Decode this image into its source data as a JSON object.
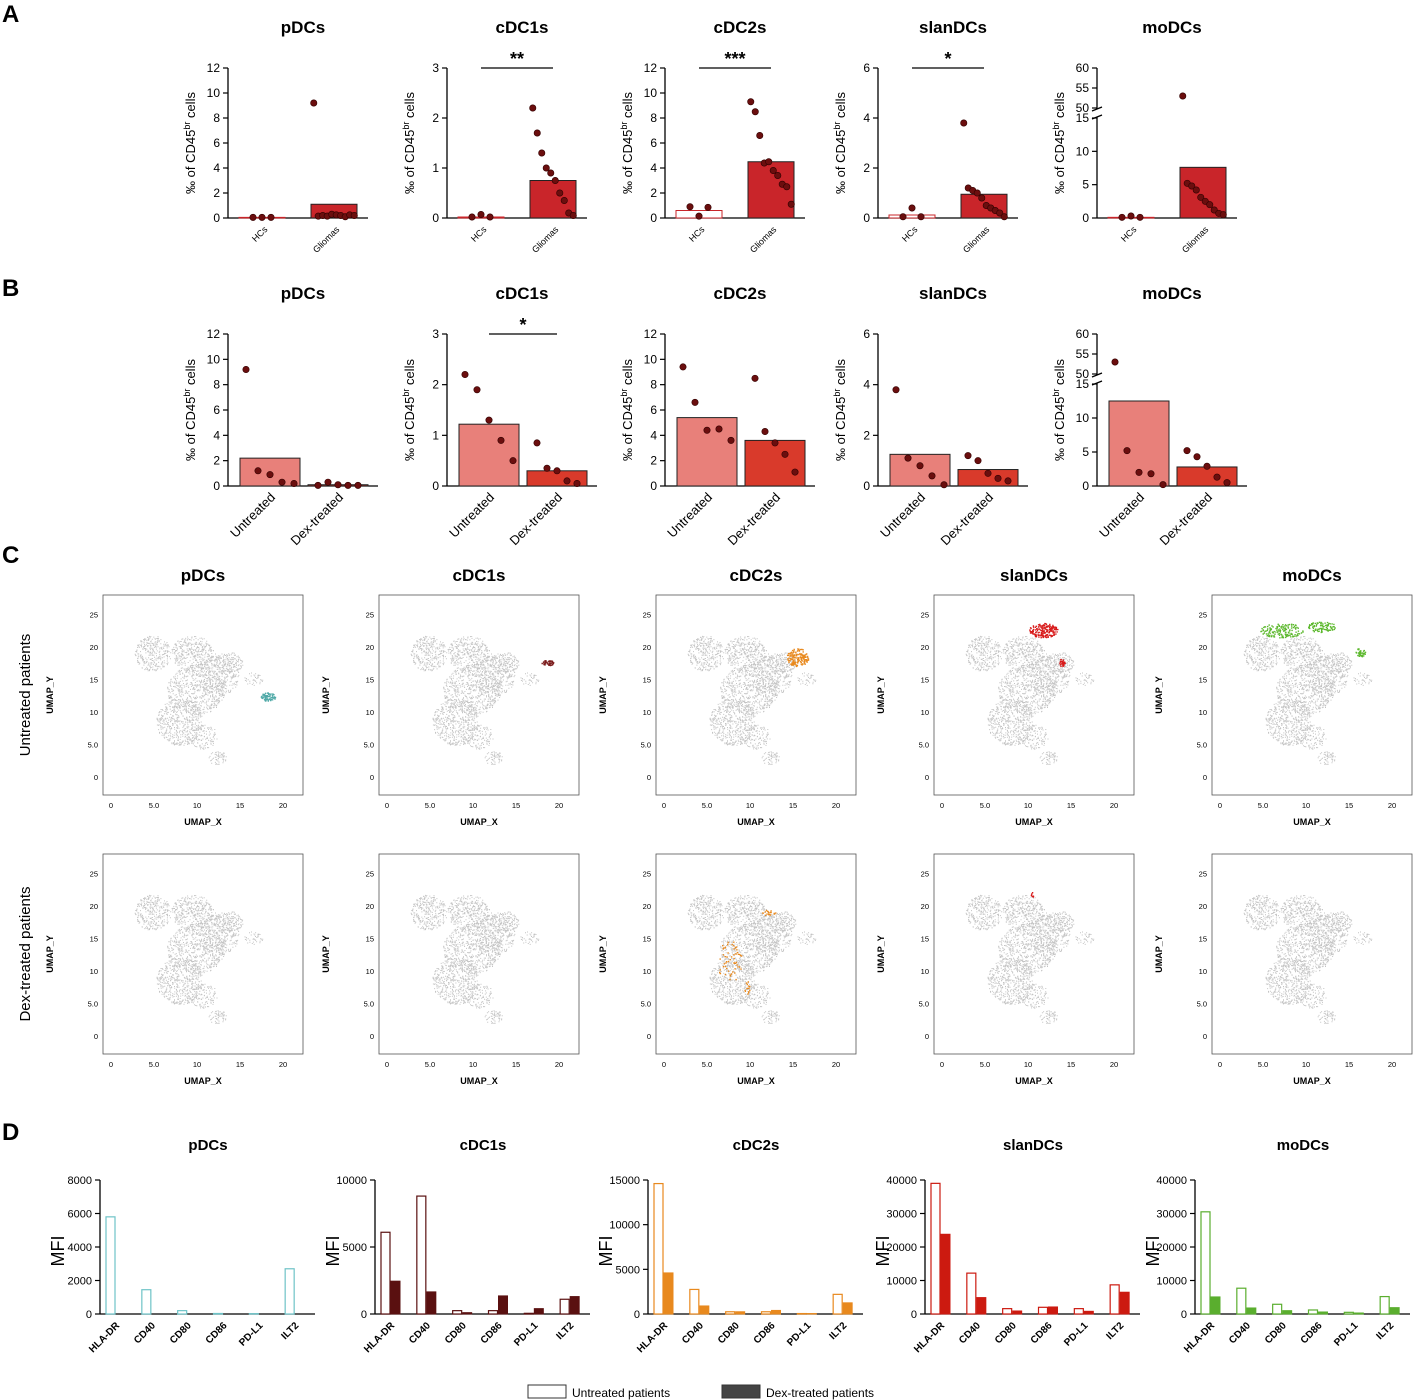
{
  "panels": {
    "A": {
      "letter": "A",
      "x_labels": [
        "HCs",
        "Gliomas"
      ],
      "y_label": "‰ of CD45",
      "y_label_sup": "br",
      "y_label_end": " cells",
      "charts": [
        {
          "title": "pDCs",
          "bars": [
            0.05,
            1.1
          ],
          "points_hc": [
            0.05,
            0.05,
            0.05
          ],
          "points_g": [
            9.2,
            0.15,
            0.2,
            0.15,
            0.3,
            0.25,
            0.2,
            0.1,
            0.25,
            0.2
          ],
          "ylim": [
            0,
            12
          ],
          "ticks": [
            0,
            2,
            4,
            6,
            8,
            10,
            12
          ],
          "sig": ""
        },
        {
          "title": "cDC1s",
          "bars": [
            0.02,
            0.75
          ],
          "points_hc": [
            0.02,
            0.07,
            0.02
          ],
          "points_g": [
            2.2,
            1.7,
            1.3,
            1.0,
            0.9,
            0.75,
            0.5,
            0.35,
            0.1,
            0.05
          ],
          "ylim": [
            0,
            3
          ],
          "ticks": [
            0,
            1,
            2,
            3
          ],
          "sig": "**"
        },
        {
          "title": "cDC2s",
          "bars": [
            0.6,
            4.5
          ],
          "points_hc": [
            0.9,
            0.15,
            0.85
          ],
          "points_g": [
            9.3,
            8.5,
            6.6,
            4.4,
            4.5,
            3.8,
            3.4,
            2.7,
            2.5,
            1.1
          ],
          "ylim": [
            0,
            12
          ],
          "ticks": [
            0,
            2,
            4,
            6,
            8,
            10,
            12
          ],
          "sig": "***"
        },
        {
          "title": "slanDCs",
          "bars": [
            0.12,
            0.95
          ],
          "points_hc": [
            0.05,
            0.4,
            0.05
          ],
          "points_g": [
            3.8,
            1.2,
            1.1,
            1.0,
            0.8,
            0.5,
            0.4,
            0.3,
            0.2,
            0.05
          ],
          "ylim": [
            0,
            6
          ],
          "ticks": [
            0,
            2,
            4,
            6
          ],
          "sig": "*"
        },
        {
          "title": "moDCs",
          "bars": [
            0.1,
            7.6
          ],
          "points_hc": [
            0.1,
            0.3,
            0.1
          ],
          "points_g": [
            53,
            5.2,
            4.8,
            4.2,
            3.1,
            2.5,
            2.0,
            1.2,
            0.7,
            0.5
          ],
          "ylim": [
            0,
            60
          ],
          "ticks": [
            0,
            5,
            10,
            15,
            50,
            55,
            60
          ],
          "broken": true,
          "sig": ""
        }
      ]
    },
    "B": {
      "letter": "B",
      "x_labels": [
        "Untreated",
        "Dex-treated"
      ],
      "charts": [
        {
          "title": "pDCs",
          "bars": [
            2.2,
            0.1
          ],
          "points_u": [
            9.2,
            1.2,
            0.9,
            0.3,
            0.2
          ],
          "points_d": [
            0.05,
            0.3,
            0.1,
            0.05,
            0.05
          ],
          "ylim": [
            0,
            12
          ],
          "ticks": [
            0,
            2,
            4,
            6,
            8,
            10,
            12
          ],
          "sig": ""
        },
        {
          "title": "cDC1s",
          "bars": [
            1.22,
            0.3
          ],
          "points_u": [
            2.2,
            1.9,
            1.3,
            0.9,
            0.5
          ],
          "points_d": [
            0.85,
            0.35,
            0.3,
            0.1,
            0.05
          ],
          "ylim": [
            0,
            3
          ],
          "ticks": [
            0,
            1,
            2,
            3
          ],
          "sig": "*"
        },
        {
          "title": "cDC2s",
          "bars": [
            5.4,
            3.6
          ],
          "points_u": [
            9.4,
            6.6,
            4.4,
            4.5,
            3.6
          ],
          "points_d": [
            8.5,
            4.3,
            3.4,
            2.5,
            1.1
          ],
          "ylim": [
            0,
            12
          ],
          "ticks": [
            0,
            2,
            4,
            6,
            8,
            10,
            12
          ],
          "sig": ""
        },
        {
          "title": "slanDCs",
          "bars": [
            1.25,
            0.65
          ],
          "points_u": [
            3.8,
            1.1,
            0.8,
            0.4,
            0.05
          ],
          "points_d": [
            1.2,
            1.0,
            0.5,
            0.3,
            0.2
          ],
          "ylim": [
            0,
            6
          ],
          "ticks": [
            0,
            2,
            4,
            6
          ],
          "sig": ""
        },
        {
          "title": "moDCs",
          "bars": [
            12.5,
            2.8
          ],
          "points_u": [
            53,
            5.2,
            2.0,
            1.8,
            0.2
          ],
          "points_d": [
            5.2,
            4.3,
            2.9,
            1.3,
            0.5
          ],
          "ylim": [
            0,
            60
          ],
          "ticks": [
            0,
            5,
            10,
            15,
            50,
            55,
            60
          ],
          "broken": true,
          "sig": ""
        }
      ]
    },
    "C": {
      "letter": "C",
      "row_labels": [
        "Untreated patients",
        "Dex-treated patients"
      ],
      "x_label": "UMAP_X",
      "y_label": "UMAP_Y",
      "x_ticks": [
        "0",
        "5.0",
        "10",
        "15",
        "20"
      ],
      "y_ticks": [
        "0",
        "5.0",
        "10",
        "15",
        "20",
        "25"
      ],
      "titles": [
        "pDCs",
        "cDC1s",
        "cDC2s",
        "slanDCs",
        "moDCs"
      ],
      "colors": [
        "#4fa9a7",
        "#7a1a1a",
        "#e8891e",
        "#d81a1a",
        "#5cb82d"
      ]
    },
    "D": {
      "letter": "D",
      "y_label": "MFI",
      "categories": [
        "HLA-DR",
        "CD40",
        "CD80",
        "CD86",
        "PD-L1",
        "ILT2"
      ],
      "charts": [
        {
          "title": "pDCs",
          "color": "#6ec3c7",
          "untreated": [
            5800,
            1450,
            200,
            30,
            20,
            2700
          ],
          "dex": [
            0,
            0,
            0,
            0,
            0,
            0
          ],
          "ylim": [
            0,
            8000
          ],
          "ticks": [
            0,
            2000,
            4000,
            6000,
            8000
          ]
        },
        {
          "title": "cDC1s",
          "color": "#5a1010",
          "untreated": [
            6100,
            8800,
            250,
            250,
            50,
            1100
          ],
          "dex": [
            2450,
            1650,
            100,
            1350,
            400,
            1300
          ],
          "ylim": [
            0,
            10000
          ],
          "ticks": [
            0,
            5000,
            10000
          ]
        },
        {
          "title": "cDC2s",
          "color": "#e8891e",
          "untreated": [
            14600,
            2750,
            250,
            250,
            50,
            2200
          ],
          "dex": [
            4600,
            900,
            250,
            400,
            50,
            1250
          ],
          "ylim": [
            0,
            15000
          ],
          "ticks": [
            0,
            5000,
            10000,
            15000
          ]
        },
        {
          "title": "slanDCs",
          "color": "#cc1a10",
          "untreated": [
            39000,
            12200,
            1600,
            2000,
            1600,
            8700
          ],
          "dex": [
            23800,
            4900,
            900,
            2100,
            800,
            6500
          ],
          "ylim": [
            0,
            40000
          ],
          "ticks": [
            0,
            10000,
            20000,
            30000,
            40000
          ]
        },
        {
          "title": "moDCs",
          "color": "#5aae2e",
          "untreated": [
            30500,
            7700,
            2900,
            1200,
            500,
            5200
          ],
          "dex": [
            5100,
            1800,
            1000,
            600,
            300,
            1900
          ],
          "ylim": [
            0,
            40000
          ],
          "ticks": [
            0,
            10000,
            20000,
            30000,
            40000
          ]
        }
      ]
    }
  },
  "legend": {
    "untreated": "Untreated patients",
    "dex": "Dex-treated patients"
  },
  "colors": {
    "gliomas_bar": "#c9252a",
    "untreated_bar": "#e8807a",
    "dex_bar": "#d93a2b",
    "dot": "#6b0e0e",
    "umap_gray": "#c4c4c4"
  }
}
